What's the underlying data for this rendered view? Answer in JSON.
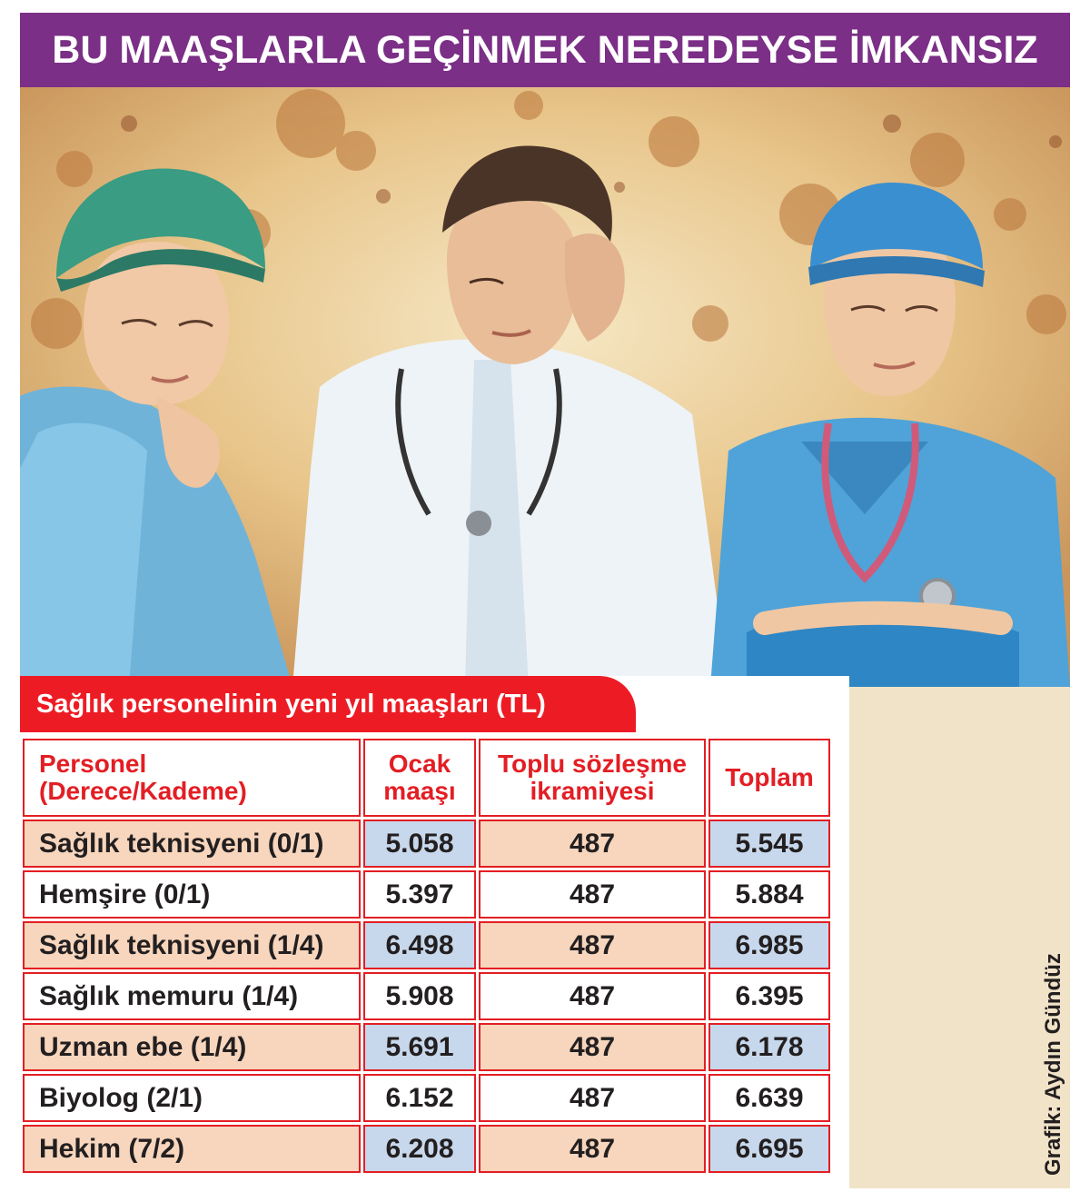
{
  "headline": "BU MAAŞLARLA GEÇİNMEK NEREDEYSE İMKANSIZ",
  "colors": {
    "headline_bg": "#7b2f86",
    "subtitle_bg": "#ed1c24",
    "header_text": "#e31e24",
    "row_peach": "#f7d6bd",
    "cell_blue": "#c8d8ec"
  },
  "illustration": {
    "figures": [
      "nurse-green-cap",
      "doctor-white-coat",
      "nurse-blue-scrubs-stethoscope"
    ]
  },
  "chart_data": {
    "type": "table",
    "title": "Sağlık personelinin yeni yıl maaşları (TL)",
    "columns": [
      "Personel\n(Derece/Kademe)",
      "Ocak\nmaaşı",
      "Toplu sözleşme\nikramiyesi",
      "Toplam"
    ],
    "rows": [
      [
        "Sağlık teknisyeni (0/1)",
        "5.058",
        "487",
        "5.545"
      ],
      [
        "Hemşire (0/1)",
        "5.397",
        "487",
        "5.884"
      ],
      [
        "Sağlık teknisyeni (1/4)",
        "6.498",
        "487",
        "6.985"
      ],
      [
        "Sağlık memuru (1/4)",
        "5.908",
        "487",
        "6.395"
      ],
      [
        "Uzman ebe (1/4)",
        "5.691",
        "487",
        "6.178"
      ],
      [
        "Biyolog (2/1)",
        "6.152",
        "487",
        "6.639"
      ],
      [
        "Hekim (7/2)",
        "6.208",
        "487",
        "6.695"
      ]
    ]
  },
  "credit": "Grafik: Aydın Gündüz"
}
